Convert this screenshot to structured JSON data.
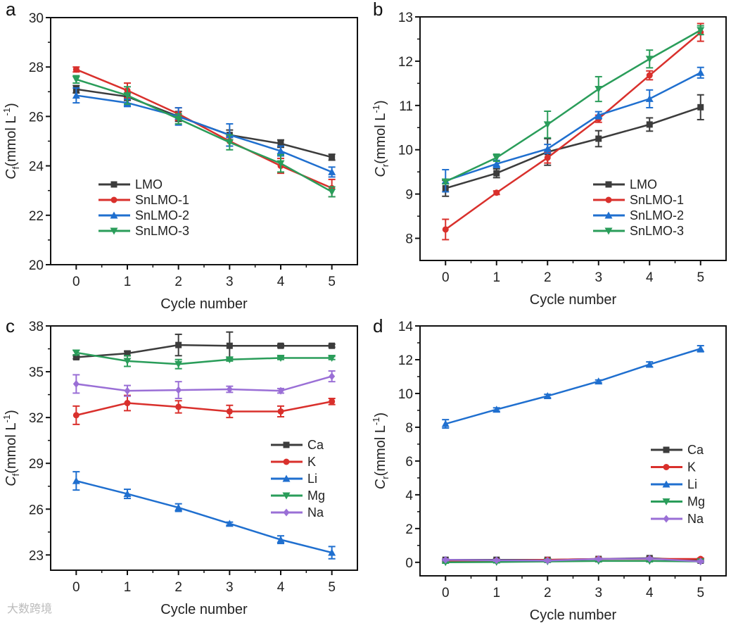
{
  "watermark": "大数跨境",
  "chart_data": [
    {
      "panel": "a",
      "type": "line",
      "xlabel": "Cycle number",
      "ylabel": "C_f (mmol L-1)",
      "ylabel_main": "C",
      "ylabel_sub": "f",
      "ylabel_unit": "(mmol  L",
      "ylabel_sup": "-1",
      "ylabel_close": ")",
      "x": [
        0,
        1,
        2,
        3,
        4,
        5
      ],
      "xlim": [
        -0.5,
        5.5
      ],
      "ylim": [
        20,
        30
      ],
      "xticks": [
        "0",
        "1",
        "2",
        "3",
        "4",
        "5"
      ],
      "yticks": [
        20,
        22,
        24,
        26,
        28,
        30
      ],
      "legend": "center-left",
      "series": [
        {
          "name": "LMO",
          "color": "#3c3c3c",
          "marker": "square",
          "values": [
            27.1,
            26.8,
            26.0,
            25.25,
            24.9,
            24.35
          ],
          "errors": [
            0.15,
            0.15,
            0.2,
            0.2,
            0.15,
            0.12
          ]
        },
        {
          "name": "SnLMO-1",
          "color": "#d9302c",
          "marker": "circle",
          "values": [
            27.9,
            27.05,
            26.1,
            25.0,
            24.0,
            23.1
          ],
          "errors": [
            0.1,
            0.3,
            0.25,
            0.2,
            0.3,
            0.35
          ]
        },
        {
          "name": "SnLMO-2",
          "color": "#1f6fcf",
          "marker": "triangle-up",
          "values": [
            26.85,
            26.55,
            26.0,
            25.25,
            24.6,
            23.75
          ],
          "errors": [
            0.3,
            0.15,
            0.35,
            0.45,
            0.2,
            0.2
          ]
        },
        {
          "name": "SnLMO-3",
          "color": "#2a9d5a",
          "marker": "triangle-down",
          "values": [
            27.5,
            26.85,
            25.9,
            24.95,
            24.1,
            22.95
          ],
          "errors": [
            0.15,
            0.35,
            0.2,
            0.3,
            0.35,
            0.2
          ]
        }
      ]
    },
    {
      "panel": "b",
      "type": "line",
      "xlabel": "Cycle number",
      "ylabel": "C_r (mmol L-1)",
      "ylabel_main": "C",
      "ylabel_sub": "r",
      "ylabel_unit": "(mmol  L",
      "ylabel_sup": "-1",
      "ylabel_close": ")",
      "x": [
        0,
        1,
        2,
        3,
        4,
        5
      ],
      "xlim": [
        -0.5,
        5.5
      ],
      "ylim": [
        7.5,
        13
      ],
      "xticks": [
        "0",
        "1",
        "2",
        "3",
        "4",
        "5"
      ],
      "yticks": [
        8,
        9,
        10,
        11,
        12,
        13
      ],
      "legend": "bottom-right",
      "series": [
        {
          "name": "LMO",
          "color": "#3c3c3c",
          "marker": "square",
          "values": [
            9.13,
            9.47,
            9.95,
            10.25,
            10.57,
            10.96
          ],
          "errors": [
            0.18,
            0.1,
            0.3,
            0.18,
            0.15,
            0.28
          ]
        },
        {
          "name": "SnLMO-1",
          "color": "#d9302c",
          "marker": "circle",
          "values": [
            8.2,
            9.03,
            9.82,
            10.7,
            11.68,
            12.65
          ],
          "errors": [
            0.23,
            0.04,
            0.12,
            0.08,
            0.1,
            0.2
          ]
        },
        {
          "name": "SnLMO-2",
          "color": "#1f6fcf",
          "marker": "triangle-up",
          "values": [
            9.3,
            9.68,
            10.02,
            10.78,
            11.15,
            11.74
          ],
          "errors": [
            0.25,
            0.08,
            0.1,
            0.08,
            0.2,
            0.12
          ]
        },
        {
          "name": "SnLMO-3",
          "color": "#2a9d5a",
          "marker": "triangle-down",
          "values": [
            9.28,
            9.82,
            10.57,
            11.37,
            12.05,
            12.7
          ],
          "errors": [
            0.05,
            0.08,
            0.3,
            0.28,
            0.2,
            0.1
          ]
        }
      ]
    },
    {
      "panel": "c",
      "type": "line",
      "xlabel": "Cycle number",
      "ylabel": "C_f (mmol L-1)",
      "ylabel_main": "C",
      "ylabel_sub": "f",
      "ylabel_unit": "(mmol  L",
      "ylabel_sup": "-1",
      "ylabel_close": ")",
      "x": [
        0,
        1,
        2,
        3,
        4,
        5
      ],
      "xlim": [
        -0.5,
        5.5
      ],
      "ylim": [
        22,
        38
      ],
      "xticks": [
        "0",
        "1",
        "2",
        "3",
        "4",
        "5"
      ],
      "yticks": [
        23,
        26,
        29,
        32,
        35,
        38
      ],
      "legend": "bottom-right",
      "series": [
        {
          "name": "Ca",
          "color": "#3c3c3c",
          "marker": "square",
          "values": [
            35.95,
            36.2,
            36.75,
            36.7,
            36.7,
            36.7
          ],
          "errors": [
            0.1,
            0.15,
            0.7,
            0.9,
            0.1,
            0.1
          ]
        },
        {
          "name": "K",
          "color": "#d9302c",
          "marker": "circle",
          "values": [
            32.15,
            32.95,
            32.7,
            32.4,
            32.4,
            33.05
          ],
          "errors": [
            0.6,
            0.5,
            0.4,
            0.4,
            0.35,
            0.2
          ]
        },
        {
          "name": "Li",
          "color": "#1f6fcf",
          "marker": "triangle-up",
          "values": [
            27.85,
            27.0,
            26.1,
            25.05,
            24.0,
            23.15
          ],
          "errors": [
            0.6,
            0.3,
            0.25,
            0.1,
            0.25,
            0.4
          ]
        },
        {
          "name": "Mg",
          "color": "#2a9d5a",
          "marker": "triangle-down",
          "values": [
            36.25,
            35.7,
            35.5,
            35.8,
            35.9,
            35.9
          ],
          "errors": [
            0.15,
            0.35,
            0.3,
            0.1,
            0.1,
            0.1
          ]
        },
        {
          "name": "Na",
          "color": "#9a6fd6",
          "marker": "diamond",
          "values": [
            34.2,
            33.75,
            33.8,
            33.85,
            33.75,
            34.7
          ],
          "errors": [
            0.6,
            0.35,
            0.55,
            0.2,
            0.15,
            0.35
          ]
        }
      ]
    },
    {
      "panel": "d",
      "type": "line",
      "xlabel": "Cycle number",
      "ylabel": "C_r (mmol L-1)",
      "ylabel_main": "C",
      "ylabel_sub": "r",
      "ylabel_unit": "(mmol  L",
      "ylabel_sup": "-1",
      "ylabel_close": ")",
      "x": [
        0,
        1,
        2,
        3,
        4,
        5
      ],
      "xlim": [
        -0.5,
        5.5
      ],
      "ylim": [
        -0.8,
        14
      ],
      "xticks": [
        "0",
        "1",
        "2",
        "3",
        "4",
        "5"
      ],
      "yticks": [
        0,
        2,
        4,
        6,
        8,
        10,
        12,
        14
      ],
      "legend": "bottom-right",
      "series": [
        {
          "name": "Ca",
          "color": "#3c3c3c",
          "marker": "square",
          "values": [
            0.15,
            0.15,
            0.15,
            0.2,
            0.25,
            0.1
          ],
          "errors": [
            0.05,
            0.05,
            0.05,
            0.05,
            0.05,
            0.05
          ]
        },
        {
          "name": "K",
          "color": "#d9302c",
          "marker": "circle",
          "values": [
            0.1,
            0.1,
            0.15,
            0.2,
            0.2,
            0.2
          ],
          "errors": [
            0.05,
            0.05,
            0.05,
            0.05,
            0.05,
            0.05
          ]
        },
        {
          "name": "Li",
          "color": "#1f6fcf",
          "marker": "triangle-up",
          "values": [
            8.2,
            9.05,
            9.85,
            10.72,
            11.72,
            12.65
          ],
          "errors": [
            0.25,
            0.1,
            0.1,
            0.08,
            0.15,
            0.18
          ]
        },
        {
          "name": "Mg",
          "color": "#2a9d5a",
          "marker": "triangle-down",
          "values": [
            0.0,
            0.02,
            0.05,
            0.08,
            0.08,
            0.05
          ],
          "errors": [
            0.05,
            0.05,
            0.05,
            0.05,
            0.05,
            0.05
          ]
        },
        {
          "name": "Na",
          "color": "#9a6fd6",
          "marker": "diamond",
          "values": [
            0.15,
            0.12,
            0.1,
            0.2,
            0.22,
            0.05
          ],
          "errors": [
            0.05,
            0.05,
            0.05,
            0.05,
            0.05,
            0.05
          ]
        }
      ]
    }
  ]
}
